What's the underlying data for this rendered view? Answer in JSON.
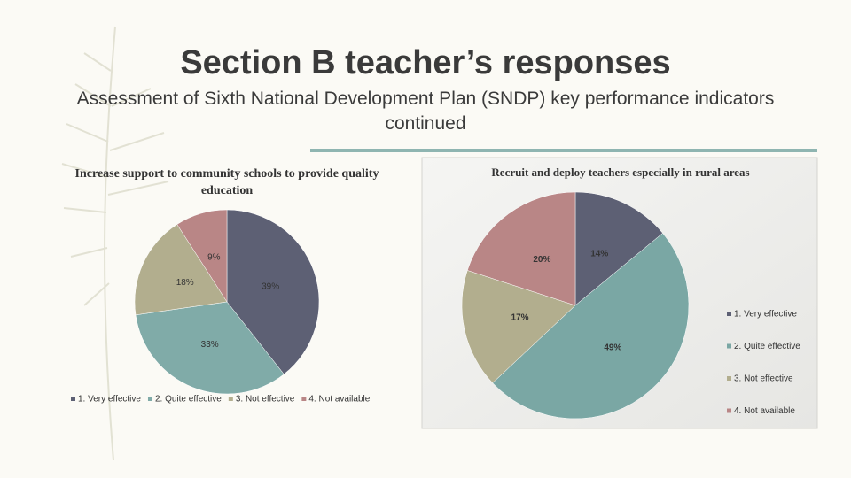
{
  "title": "Section B teacher’s responses",
  "subtitle": "Assessment of Sixth National Development Plan (SNDP) key performance indicators continued",
  "chart_data": [
    {
      "type": "pie",
      "title": "Increase support to community schools to provide quality education",
      "categories": [
        "1. Very effective",
        "2. Quite effective",
        "3. Not effective",
        "4. Not available"
      ],
      "values": [
        39,
        33,
        18,
        9
      ],
      "value_labels": [
        "39%",
        "33%",
        "18%",
        "9%"
      ],
      "colors": [
        "#5d6074",
        "#80aba8",
        "#b2ae8e",
        "#b98686"
      ],
      "legend": "bottom"
    },
    {
      "type": "pie",
      "title": "Recruit and deploy teachers especially in rural areas",
      "categories": [
        "1. Very effective",
        "2. Quite effective",
        "3. Not effective",
        "4. Not available"
      ],
      "values": [
        14,
        49,
        17,
        20
      ],
      "value_labels": [
        "14%",
        "49%",
        "17%",
        "20%"
      ],
      "colors": [
        "#5d6074",
        "#7aa7a4",
        "#b2ae8e",
        "#b98686"
      ],
      "legend": "right"
    }
  ]
}
